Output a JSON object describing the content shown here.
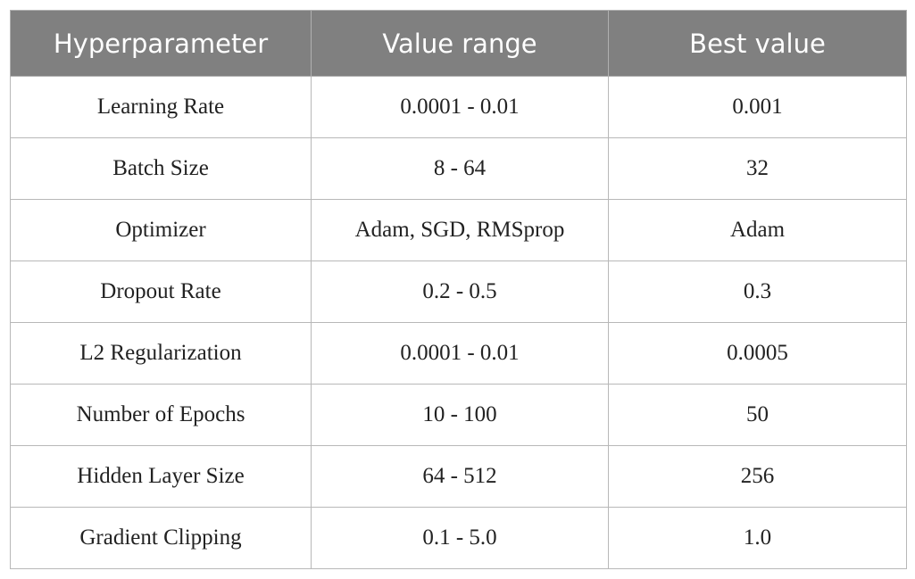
{
  "table": {
    "header": [
      "Hyperparameter",
      "Value range",
      "Best value"
    ],
    "rows": [
      [
        "Learning Rate",
        "0.0001 - 0.01",
        "0.001"
      ],
      [
        "Batch Size",
        "8 - 64",
        "32"
      ],
      [
        "Optimizer",
        "Adam, SGD, RMSprop",
        "Adam"
      ],
      [
        "Dropout Rate",
        "0.2 - 0.5",
        "0.3"
      ],
      [
        "L2 Regularization",
        "0.0001 - 0.01",
        "0.0005"
      ],
      [
        "Number of Epochs",
        "10 - 100",
        "50"
      ],
      [
        "Hidden Layer Size",
        "64 - 512",
        "256"
      ],
      [
        "Gradient Clipping",
        "0.1 - 5.0",
        "1.0"
      ]
    ]
  }
}
